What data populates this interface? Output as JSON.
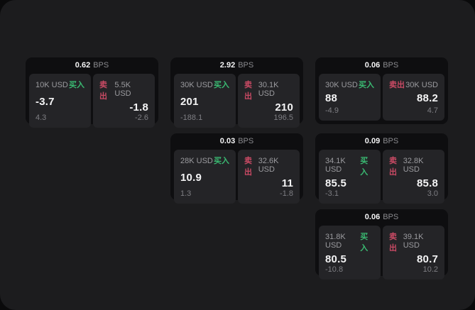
{
  "labels": {
    "bps_unit": "BPS",
    "buy": "买入",
    "sell": "卖出"
  },
  "colors": {
    "background": "#1c1c1e",
    "card_background": "#0e0e10",
    "pane_background": "#242427",
    "buy_green": "#3aba72",
    "sell_red": "#c94a64",
    "value_white": "#f4f4f5",
    "label_gray": "#9b9b9f"
  },
  "cards": [
    {
      "bps": "0.62",
      "buy": {
        "amount": "10K USD",
        "price": "-3.7",
        "sub": "4.3"
      },
      "sell": {
        "amount": "5.5K USD",
        "price": "-1.8",
        "sub": "-2.6"
      }
    },
    {
      "bps": "2.92",
      "buy": {
        "amount": "30K USD",
        "price": "201",
        "sub": "-188.1"
      },
      "sell": {
        "amount": "30.1K USD",
        "price": "210",
        "sub": "196.5"
      }
    },
    {
      "bps": "0.06",
      "buy": {
        "amount": "30K USD",
        "price": "88",
        "sub": "-4.9"
      },
      "sell": {
        "amount": "30K USD",
        "price": "88.2",
        "sub": "4.7"
      }
    },
    {
      "bps": "0.03",
      "buy": {
        "amount": "28K USD",
        "price": "10.9",
        "sub": "1.3"
      },
      "sell": {
        "amount": "32.6K USD",
        "price": "11",
        "sub": "-1.8"
      }
    },
    {
      "bps": "0.09",
      "buy": {
        "amount": "34.1K USD",
        "price": "85.5",
        "sub": "-3.1"
      },
      "sell": {
        "amount": "32.8K USD",
        "price": "85.8",
        "sub": "3.0"
      }
    },
    {
      "bps": "0.06",
      "buy": {
        "amount": "31.8K USD",
        "price": "80.5",
        "sub": "-10.8"
      },
      "sell": {
        "amount": "39.1K USD",
        "price": "80.7",
        "sub": "10.2"
      }
    }
  ]
}
